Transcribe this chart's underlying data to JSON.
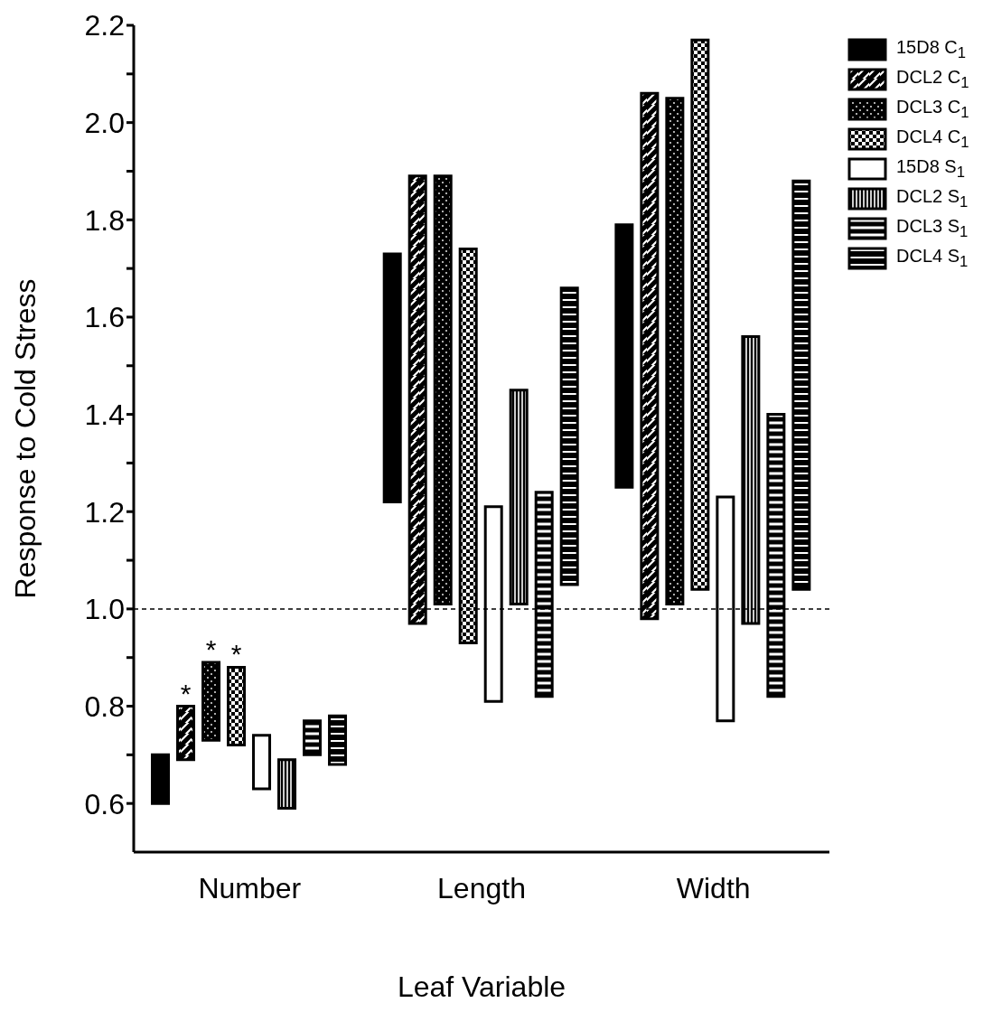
{
  "chart_data": {
    "type": "bar",
    "xlabel": "Leaf Variable",
    "ylabel": "Response to Cold Stress",
    "categories": [
      "Number",
      "Length",
      "Width"
    ],
    "series": [
      {
        "name": "15D8 C$_{1}$",
        "color": "#000000",
        "base": [
          0.6,
          1.22,
          1.25
        ],
        "values": [
          0.1,
          0.51,
          0.54
        ]
      },
      {
        "name": "DCL2 C$_{1}$",
        "color": "#000000",
        "base": [
          0.69,
          0.97,
          0.98
        ],
        "values": [
          0.11,
          0.92,
          1.08
        ],
        "value_labels": [
          "*",
          null,
          null
        ]
      },
      {
        "name": "DCL3 C$_{1}$",
        "color": "#000000",
        "base": [
          0.73,
          1.01,
          1.01
        ],
        "values": [
          0.16,
          0.88,
          1.04
        ],
        "value_labels": [
          "*",
          null,
          null
        ]
      },
      {
        "name": "DCL4 C$_{1}$",
        "color": "#000000",
        "base": [
          0.72,
          0.93,
          1.04
        ],
        "values": [
          0.16,
          0.81,
          1.13
        ],
        "value_labels": [
          "*",
          null,
          null
        ]
      },
      {
        "name": "15D8 S$_{1}$",
        "color": "#ffffff",
        "base": [
          0.63,
          0.81,
          0.77
        ],
        "values": [
          0.11,
          0.4,
          0.46
        ]
      },
      {
        "name": "DCL2 S$_{1}$",
        "color": "#000000",
        "base": [
          0.59,
          1.01,
          0.97
        ],
        "values": [
          0.1,
          0.44,
          0.59
        ]
      },
      {
        "name": "DCL3 S$_{1}$",
        "color": "#000000",
        "base": [
          0.7,
          0.82,
          0.82
        ],
        "values": [
          0.07,
          0.42,
          0.58
        ]
      },
      {
        "name": "DCL4 S$_{1}$",
        "color": "#000000",
        "base": [
          0.68,
          1.05,
          1.04
        ],
        "values": [
          0.1,
          0.61,
          0.84
        ]
      }
    ],
    "ylim": [
      0.5,
      2.2
    ],
    "yticks": [
      {
        "value": 0.6,
        "label": "0.6"
      },
      {
        "value": 0.7,
        "label": null
      },
      {
        "value": 0.8,
        "label": "0.8"
      },
      {
        "value": 0.9,
        "label": null
      },
      {
        "value": 1.0,
        "label": "1.0"
      },
      {
        "value": 1.1,
        "label": null
      },
      {
        "value": 1.2,
        "label": "1.2"
      },
      {
        "value": 1.3,
        "label": null
      },
      {
        "value": 1.4,
        "label": "1.4"
      },
      {
        "value": 1.5,
        "label": null
      },
      {
        "value": 1.6,
        "label": "1.6"
      },
      {
        "value": 1.7,
        "label": null
      },
      {
        "value": 1.8,
        "label": "1.8"
      },
      {
        "value": 1.9,
        "label": null
      },
      {
        "value": 2.0,
        "label": "2.0"
      },
      {
        "value": 2.1,
        "label": null
      },
      {
        "value": 2.2,
        "label": "2.2"
      }
    ],
    "ref_lines": [
      {
        "axis": "y",
        "value": 1.0,
        "line_style": "dashed",
        "color": "#000000"
      }
    ],
    "legend": "top right",
    "grid": false
  }
}
